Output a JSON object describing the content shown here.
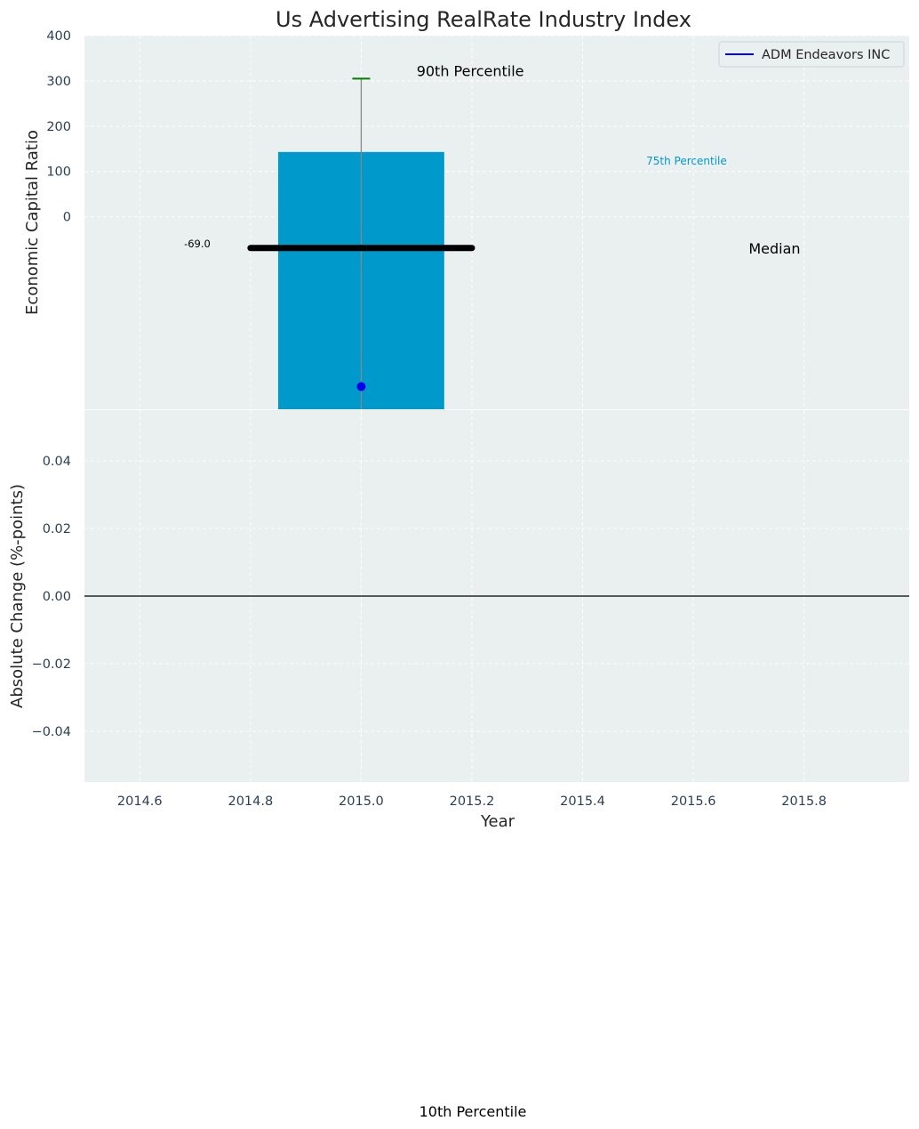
{
  "chart_data": [
    {
      "type": "bar",
      "title": "Us Advertising RealRate Industry Index",
      "ylabel": "Economic Capital Ratio",
      "xlabel": "",
      "ylim": [
        -425,
        400
      ],
      "yticks": [
        0,
        100,
        200,
        300,
        400
      ],
      "grid": true,
      "legend": {
        "placement": "top-right",
        "entries": [
          {
            "name": "ADM Endeavors INC",
            "color": "#0000dd"
          }
        ]
      },
      "bar": {
        "x": 2015.0,
        "width": 0.3,
        "bottom": -425,
        "top": 143,
        "color": "#0099cc"
      },
      "whisker": {
        "x": 2015.0,
        "low": -425,
        "high": 305,
        "color": "#888888",
        "cap_color": "#008000"
      },
      "median_line": {
        "x0": 2014.8,
        "x1": 2015.2,
        "y": -69,
        "color": "#000000"
      },
      "company_point": {
        "name": "ADM Endeavors INC",
        "x": 2015.0,
        "y": -375,
        "color": "#0000ee"
      },
      "annotations": [
        {
          "text": "90th Percentile",
          "x": 2015.1,
          "y": 322
        },
        {
          "text": "75th Percentile",
          "x": 2015.515,
          "y": 123
        },
        {
          "text": "Median",
          "x": 2015.7,
          "y": -69
        },
        {
          "text": "-69.0",
          "x": 2014.68,
          "y": -60
        }
      ]
    },
    {
      "type": "line",
      "ylabel": "Absolute Change (%-points)",
      "xlabel": "Year",
      "xlim": [
        2014.5,
        2015.99
      ],
      "ylim": [
        -0.055,
        0.055
      ],
      "xticks": [
        2014.6,
        2014.8,
        2015.0,
        2015.2,
        2015.4,
        2015.6,
        2015.8
      ],
      "xtick_labels": [
        "2014.6",
        "2014.8",
        "2015.0",
        "2015.2",
        "2015.4",
        "2015.6",
        "2015.8"
      ],
      "yticks": [
        0.04,
        0.02,
        0.0,
        -0.02,
        -0.04
      ],
      "ytick_labels": [
        "0.04",
        "0.02",
        "0.00",
        "−0.02",
        "−0.04"
      ],
      "zero_line": 0.0,
      "grid": true,
      "series": []
    }
  ],
  "footer_annotation": "10th Percentile",
  "colors": {
    "panel_bg": "#eaeff0",
    "grid": "#ffffff",
    "tick_text": "#2b3f56"
  }
}
